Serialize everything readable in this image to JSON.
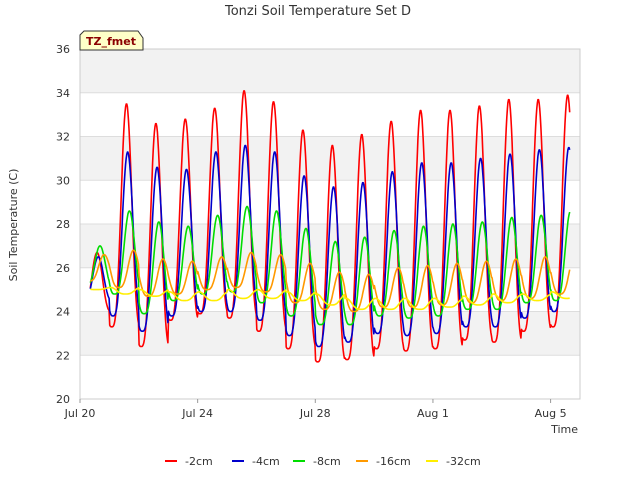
{
  "chart_data": {
    "type": "line",
    "title": "Tonzi Soil Temperature Set D",
    "xlabel": "Time",
    "ylabel": "Soil Temperature (C)",
    "ylim": [
      20,
      36
    ],
    "xlim_days": [
      "Jul 20",
      "Aug 6"
    ],
    "yticks": [
      "20",
      "22",
      "24",
      "26",
      "28",
      "30",
      "32",
      "34",
      "36"
    ],
    "xticks": [
      {
        "label": "Jul 20",
        "day": 0
      },
      {
        "label": "Jul 24",
        "day": 4
      },
      {
        "label": "Jul 28",
        "day": 8
      },
      {
        "label": "Aug 1",
        "day": 12
      },
      {
        "label": "Aug 5",
        "day": 16
      }
    ],
    "grid": true,
    "legend_position": "bottom",
    "site_tag": "TZ_fmet",
    "series": [
      {
        "name": "-2cm",
        "color": "#ff0000",
        "daily_max": [
          26.7,
          33.5,
          32.6,
          32.8,
          33.3,
          34.1,
          33.6,
          32.3,
          31.6,
          32.1,
          32.7,
          33.2,
          33.2,
          33.4,
          33.7,
          33.7,
          33.9
        ],
        "daily_min": [
          24.0,
          23.3,
          22.4,
          23.6,
          23.9,
          23.7,
          23.1,
          22.3,
          21.7,
          21.8,
          22.3,
          22.2,
          22.3,
          22.7,
          22.6,
          23.1,
          23.3
        ]
      },
      {
        "name": "-4cm",
        "color": "#0000cc",
        "daily_max": [
          26.5,
          31.3,
          30.6,
          30.5,
          31.3,
          31.6,
          31.3,
          30.2,
          29.7,
          29.9,
          30.4,
          30.8,
          30.8,
          31.0,
          31.2,
          31.4,
          31.5
        ],
        "daily_min": [
          24.5,
          23.8,
          23.1,
          23.8,
          24.0,
          24.0,
          23.6,
          22.9,
          22.4,
          22.6,
          23.0,
          22.9,
          23.0,
          23.3,
          23.3,
          23.7,
          24.0
        ]
      },
      {
        "name": "-8cm",
        "color": "#00dd00",
        "daily_max": [
          27.0,
          28.6,
          28.1,
          27.9,
          28.4,
          28.8,
          28.6,
          27.8,
          27.2,
          27.4,
          27.7,
          27.9,
          28.0,
          28.1,
          28.3,
          28.4,
          28.6
        ],
        "daily_min": [
          25.1,
          24.8,
          23.9,
          24.5,
          24.8,
          24.9,
          24.4,
          23.8,
          23.4,
          23.4,
          23.8,
          23.7,
          23.8,
          24.1,
          24.1,
          24.4,
          24.5
        ]
      },
      {
        "name": "-16cm",
        "color": "#ff9900",
        "daily_max": [
          26.6,
          26.8,
          26.4,
          26.3,
          26.5,
          26.7,
          26.6,
          26.2,
          25.8,
          25.7,
          26.0,
          26.1,
          26.2,
          26.3,
          26.4,
          26.5,
          26.6
        ],
        "daily_min": [
          25.4,
          25.1,
          24.7,
          24.8,
          25.0,
          25.1,
          24.9,
          24.4,
          24.1,
          24.0,
          24.2,
          24.2,
          24.3,
          24.4,
          24.5,
          24.6,
          24.8
        ]
      },
      {
        "name": "-32cm",
        "color": "#ffee00",
        "daily_max": [
          25.1,
          25.1,
          25.0,
          24.9,
          24.9,
          25.0,
          25.0,
          24.9,
          24.8,
          24.6,
          24.6,
          24.6,
          24.6,
          24.7,
          24.8,
          24.8,
          24.9
        ],
        "daily_min": [
          25.0,
          24.8,
          24.7,
          24.5,
          24.5,
          24.6,
          24.6,
          24.5,
          24.3,
          24.1,
          24.1,
          24.1,
          24.2,
          24.3,
          24.4,
          24.5,
          24.6
        ]
      }
    ]
  }
}
